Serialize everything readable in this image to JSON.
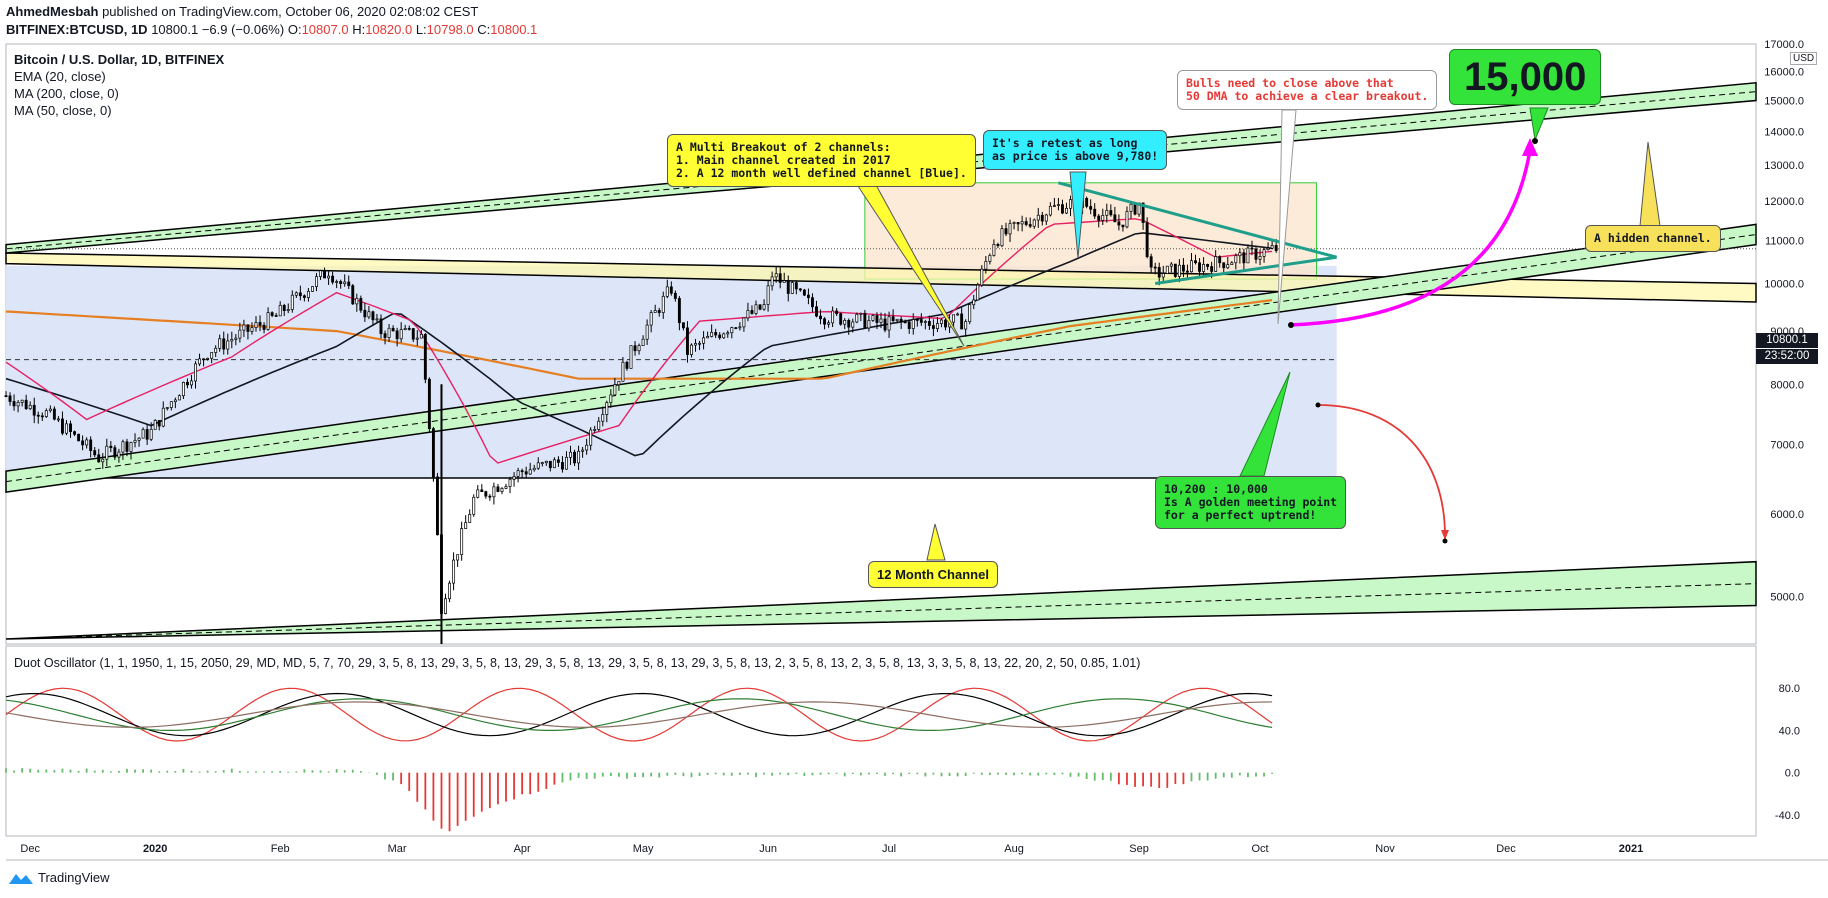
{
  "header": {
    "author": "AhmedMesbah",
    "published": " published on TradingView.com, October 06, 2020 02:08:02 CEST",
    "symbol": "BITFINEX:BTCUSD, 1D",
    "last": "10800.1",
    "change": "−6.9 (−0.06%)",
    "o_label": "O:",
    "o": "10807.0",
    "h_label": "H:",
    "h": "10820.0",
    "l_label": "L:",
    "l": "10798.0",
    "c_label": "C:",
    "c": "10800.1"
  },
  "legend": {
    "title": "Bitcoin / U.S. Dollar, 1D, BITFINEX",
    "ema20": "EMA (20, close)",
    "ma200": "MA (200, close, 0)",
    "ma50": "MA (50, close, 0)",
    "oscillator": "Duot Oscillator (1, 1, 1950, 1, 15, 2050, 29, MD, MD, 5, 7, 70, 29, 3, 5, 8, 13, 29, 3, 5, 8, 13, 29, 3, 5, 8, 13, 29, 3, 5, 8, 13, 29, 3, 5, 8, 13, 2, 3, 5, 8, 13, 2, 3, 5, 8, 13, 3, 3, 5, 8, 13, 22, 20, 2, 50, 0.85, 1.01)"
  },
  "annotations": {
    "multi_breakout": "A Multi Breakout of 2 channels:\n1. Main channel created in 2017\n2. A 12 month well defined channel [Blue].",
    "retest": "It's a retest as long\nas price is above 9,780!",
    "bulls": "Bulls need to close above that\n50 DMA to achieve a clear breakout.",
    "target": "15,000",
    "hidden_channel": "A hidden channel.",
    "twelve_month": "12 Month Channel",
    "golden": "10,200 : 10,000\nIs A golden meeting point\nfor a perfect uptrend!"
  },
  "price_tags": {
    "last": "10800.1",
    "countdown": "23:52:00",
    "currency": "USD"
  },
  "footer": {
    "brand": "TradingView"
  },
  "colors": {
    "up": "#000000",
    "down": "#000000",
    "ema20": "#e91e63",
    "ma50": "#131722",
    "ma200": "#e67e22",
    "channel_green": "#c8f7c8",
    "channel_blue": "#dce6f8",
    "target_box": "#33e33a",
    "magenta": "#ff00ff"
  },
  "chart_data": [
    {
      "type": "candlestick",
      "title": "Bitcoin / U.S. Dollar, 1D, BITFINEX",
      "ylim": [
        4500,
        17000
      ],
      "y_ticks": [
        5000,
        6000,
        7000,
        8000,
        9000,
        10000,
        11000,
        12000,
        13000,
        14000,
        15000,
        16000,
        17000
      ],
      "x_ticks": [
        "Dec",
        "2020",
        "Feb",
        "Mar",
        "Apr",
        "May",
        "Jun",
        "Jul",
        "Aug",
        "Sep",
        "Oct",
        "Nov",
        "Dec",
        "2021"
      ],
      "x_range": [
        "2019-11-25",
        "2021-02-01"
      ],
      "price_anchors": [
        [
          "2019-11-25",
          7800
        ],
        [
          "2019-12-05",
          7500
        ],
        [
          "2019-12-18",
          6800
        ],
        [
          "2019-12-31",
          7200
        ],
        [
          "2020-01-14",
          8600
        ],
        [
          "2020-01-31",
          9300
        ],
        [
          "2020-02-13",
          10300
        ],
        [
          "2020-02-26",
          9000
        ],
        [
          "2020-03-07",
          8900
        ],
        [
          "2020-03-12",
          4900
        ],
        [
          "2020-03-20",
          6200
        ],
        [
          "2020-04-01",
          6600
        ],
        [
          "2020-04-15",
          6800
        ],
        [
          "2020-04-29",
          8700
        ],
        [
          "2020-05-08",
          9900
        ],
        [
          "2020-05-12",
          8600
        ],
        [
          "2020-05-31",
          9500
        ],
        [
          "2020-06-02",
          10200
        ],
        [
          "2020-06-15",
          9300
        ],
        [
          "2020-06-30",
          9150
        ],
        [
          "2020-07-20",
          9200
        ],
        [
          "2020-07-27",
          11000
        ],
        [
          "2020-08-10",
          11800
        ],
        [
          "2020-08-17",
          12000
        ],
        [
          "2020-08-27",
          11400
        ],
        [
          "2020-09-01",
          11950
        ],
        [
          "2020-09-04",
          10200
        ],
        [
          "2020-09-10",
          10300
        ],
        [
          "2020-09-22",
          10500
        ],
        [
          "2020-10-05",
          10800
        ]
      ],
      "series_names": [
        "EMA (20, close)",
        "MA (200, close, 0)",
        "MA (50, close, 0)"
      ],
      "ma200": [
        [
          "2019-11-25",
          9400
        ],
        [
          "2020-02-15",
          9000
        ],
        [
          "2020-04-15",
          8100
        ],
        [
          "2020-06-15",
          8100
        ],
        [
          "2020-08-15",
          9100
        ],
        [
          "2020-10-05",
          9650
        ]
      ],
      "ma50": [
        [
          "2019-11-25",
          8100
        ],
        [
          "2019-12-31",
          7300
        ],
        [
          "2020-02-15",
          8700
        ],
        [
          "2020-03-01",
          9400
        ],
        [
          "2020-03-31",
          7700
        ],
        [
          "2020-04-30",
          6800
        ],
        [
          "2020-06-01",
          8700
        ],
        [
          "2020-07-15",
          9350
        ],
        [
          "2020-08-15",
          10500
        ],
        [
          "2020-09-01",
          11200
        ],
        [
          "2020-10-05",
          10800
        ]
      ],
      "ema20": [
        [
          "2019-11-25",
          8400
        ],
        [
          "2019-12-15",
          7400
        ],
        [
          "2020-01-20",
          8500
        ],
        [
          "2020-02-15",
          9800
        ],
        [
          "2020-03-05",
          9200
        ],
        [
          "2020-03-25",
          6700
        ],
        [
          "2020-04-25",
          7300
        ],
        [
          "2020-05-15",
          9200
        ],
        [
          "2020-06-15",
          9400
        ],
        [
          "2020-07-15",
          9250
        ],
        [
          "2020-08-10",
          11400
        ],
        [
          "2020-09-01",
          11550
        ],
        [
          "2020-09-20",
          10600
        ],
        [
          "2020-10-05",
          10750
        ]
      ],
      "channels": {
        "main_upper": [
          [
            "2019-11-25",
            10700,
            10900
          ],
          [
            "2021-02-01",
            15000,
            15600
          ]
        ],
        "main_lower": [
          [
            "2019-11-25",
            6300,
            6600
          ],
          [
            "2021-02-01",
            10900,
            11400
          ]
        ],
        "bottom": [
          [
            "2019-11-25",
            4550,
            4550
          ],
          [
            "2021-02-01",
            4900,
            5400
          ]
        ],
        "blue_box": {
          "x": [
            "2019-11-25",
            "2020-10-20"
          ],
          "y": [
            6500,
            10400
          ]
        },
        "orange_box": {
          "x": [
            "2020-06-25",
            "2020-10-15"
          ],
          "y": [
            10100,
            12500
          ]
        },
        "yellow_band": [
          [
            "2019-11-25",
            10450,
            10700
          ],
          [
            "2021-02-01",
            9600,
            10000
          ]
        ]
      },
      "reference_lines": [
        {
          "y": 8450,
          "style": "dashed"
        },
        {
          "y": 10800,
          "style": "dotted"
        }
      ]
    },
    {
      "type": "oscillator",
      "title": "Duot Oscillator",
      "ylim": [
        -60,
        120
      ],
      "y_ticks": [
        -40.0,
        0.0,
        40.0,
        80.0
      ],
      "histogram_anchors": [
        [
          "2019-11-25",
          3
        ],
        [
          "2020-02-20",
          2
        ],
        [
          "2020-03-02",
          -10
        ],
        [
          "2020-03-13",
          -58
        ],
        [
          "2020-03-25",
          -30
        ],
        [
          "2020-04-15",
          -5
        ],
        [
          "2020-05-15",
          -3
        ],
        [
          "2020-07-01",
          -2
        ],
        [
          "2020-08-15",
          -3
        ],
        [
          "2020-09-05",
          -15
        ],
        [
          "2020-09-20",
          -5
        ],
        [
          "2020-10-05",
          -2
        ]
      ]
    }
  ]
}
